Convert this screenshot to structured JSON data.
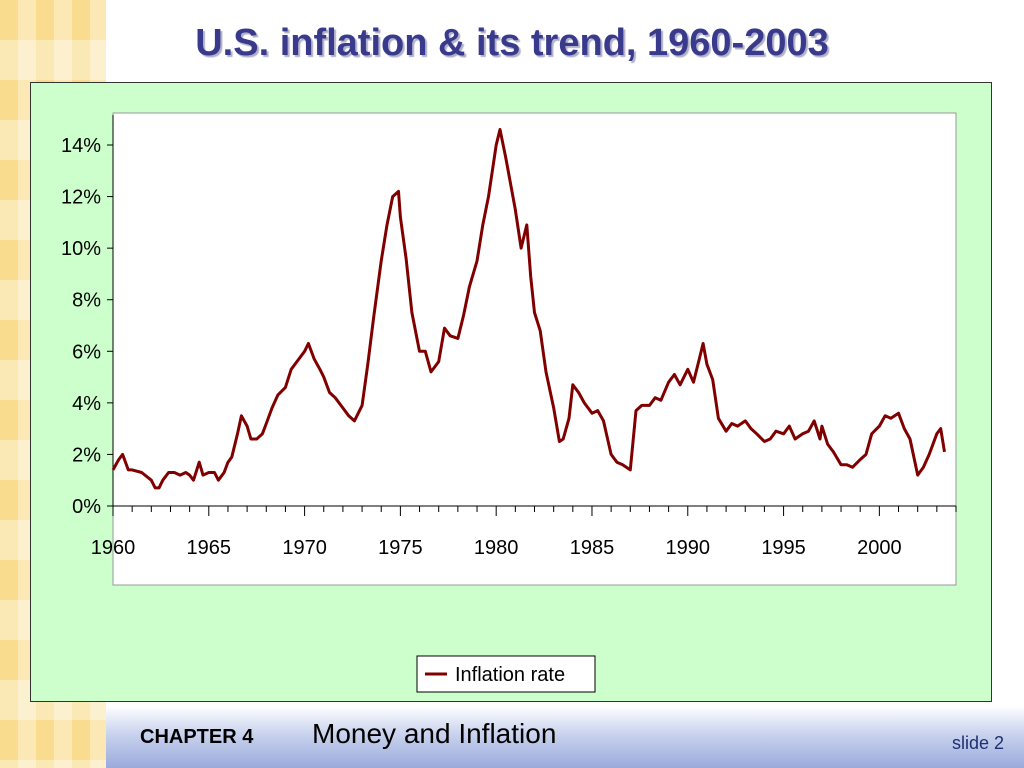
{
  "slide": {
    "title": "U.S. inflation & its trend, 1960-2003",
    "chapter_label": "CHAPTER 4",
    "chapter_title": "Money and Inflation",
    "slide_number": "slide 2"
  },
  "colors": {
    "series": "#800000",
    "plot_bg": "#ffffff",
    "frame_bg": "#ccffcc",
    "title": "#3a3a8c"
  },
  "chart_data": {
    "type": "line",
    "title": "U.S. inflation & its trend, 1960-2003",
    "xlabel": "",
    "ylabel": "",
    "xlim": [
      1960,
      2004
    ],
    "ylim": [
      0,
      15
    ],
    "yticks": [
      "0%",
      "2%",
      "4%",
      "6%",
      "8%",
      "10%",
      "12%",
      "14%"
    ],
    "xticks": [
      "1960",
      "1965",
      "1970",
      "1975",
      "1980",
      "1985",
      "1990",
      "1995",
      "2000"
    ],
    "grid": false,
    "legend": "bottom-center",
    "series": [
      {
        "name": "Inflation rate",
        "x": [
          1960.0,
          1960.3,
          1960.5,
          1960.8,
          1961.0,
          1961.5,
          1962.0,
          1962.2,
          1962.4,
          1962.6,
          1962.9,
          1963.2,
          1963.5,
          1963.8,
          1964.0,
          1964.2,
          1964.5,
          1964.7,
          1965.0,
          1965.3,
          1965.5,
          1965.8,
          1966.0,
          1966.2,
          1966.5,
          1966.7,
          1967.0,
          1967.2,
          1967.5,
          1967.8,
          1968.0,
          1968.3,
          1968.6,
          1969.0,
          1969.3,
          1969.6,
          1970.0,
          1970.2,
          1970.5,
          1970.8,
          1971.0,
          1971.3,
          1971.6,
          1972.0,
          1972.3,
          1972.6,
          1973.0,
          1973.3,
          1973.6,
          1974.0,
          1974.3,
          1974.6,
          1974.9,
          1975.0,
          1975.3,
          1975.6,
          1976.0,
          1976.3,
          1976.6,
          1977.0,
          1977.3,
          1977.6,
          1978.0,
          1978.3,
          1978.6,
          1979.0,
          1979.3,
          1979.6,
          1980.0,
          1980.2,
          1980.5,
          1980.7,
          1981.0,
          1981.3,
          1981.6,
          1981.8,
          1982.0,
          1982.3,
          1982.6,
          1983.0,
          1983.3,
          1983.5,
          1983.8,
          1984.0,
          1984.3,
          1984.6,
          1985.0,
          1985.3,
          1985.6,
          1986.0,
          1986.3,
          1986.6,
          1987.0,
          1987.3,
          1987.6,
          1988.0,
          1988.3,
          1988.6,
          1989.0,
          1989.3,
          1989.6,
          1990.0,
          1990.3,
          1990.6,
          1990.8,
          1991.0,
          1991.3,
          1991.6,
          1992.0,
          1992.3,
          1992.6,
          1993.0,
          1993.3,
          1993.6,
          1994.0,
          1994.3,
          1994.6,
          1995.0,
          1995.3,
          1995.6,
          1996.0,
          1996.3,
          1996.6,
          1996.9,
          1997.0,
          1997.3,
          1997.6,
          1998.0,
          1998.3,
          1998.6,
          1999.0,
          1999.3,
          1999.6,
          2000.0,
          2000.3,
          2000.6,
          2001.0,
          2001.3,
          2001.6,
          2002.0,
          2002.3,
          2002.6,
          2003.0,
          2003.2,
          2003.4
        ],
        "values": [
          1.4,
          1.8,
          2.0,
          1.4,
          1.4,
          1.3,
          1.0,
          0.7,
          0.7,
          1.0,
          1.3,
          1.3,
          1.2,
          1.3,
          1.2,
          1.0,
          1.7,
          1.2,
          1.3,
          1.3,
          1.0,
          1.3,
          1.7,
          1.9,
          2.8,
          3.5,
          3.1,
          2.6,
          2.6,
          2.8,
          3.2,
          3.8,
          4.3,
          4.6,
          5.3,
          5.6,
          6.0,
          6.3,
          5.7,
          5.3,
          5.0,
          4.4,
          4.2,
          3.8,
          3.5,
          3.3,
          3.9,
          5.5,
          7.3,
          9.5,
          10.9,
          12.0,
          12.2,
          11.2,
          9.6,
          7.5,
          6.0,
          6.0,
          5.2,
          5.6,
          6.9,
          6.6,
          6.5,
          7.4,
          8.5,
          9.5,
          10.9,
          12.0,
          14.0,
          14.6,
          13.5,
          12.7,
          11.5,
          10.0,
          10.9,
          8.9,
          7.5,
          6.8,
          5.2,
          3.8,
          2.5,
          2.6,
          3.4,
          4.7,
          4.4,
          4.0,
          3.6,
          3.7,
          3.3,
          2.0,
          1.7,
          1.6,
          1.4,
          3.7,
          3.9,
          3.9,
          4.2,
          4.1,
          4.8,
          5.1,
          4.7,
          5.3,
          4.8,
          5.7,
          6.3,
          5.5,
          4.9,
          3.4,
          2.9,
          3.2,
          3.1,
          3.3,
          3.0,
          2.8,
          2.5,
          2.6,
          2.9,
          2.8,
          3.1,
          2.6,
          2.8,
          2.9,
          3.3,
          2.6,
          3.1,
          2.4,
          2.1,
          1.6,
          1.6,
          1.5,
          1.8,
          2.0,
          2.8,
          3.1,
          3.5,
          3.4,
          3.6,
          3.0,
          2.6,
          1.2,
          1.5,
          2.0,
          2.8,
          3.0,
          2.1
        ]
      }
    ]
  }
}
